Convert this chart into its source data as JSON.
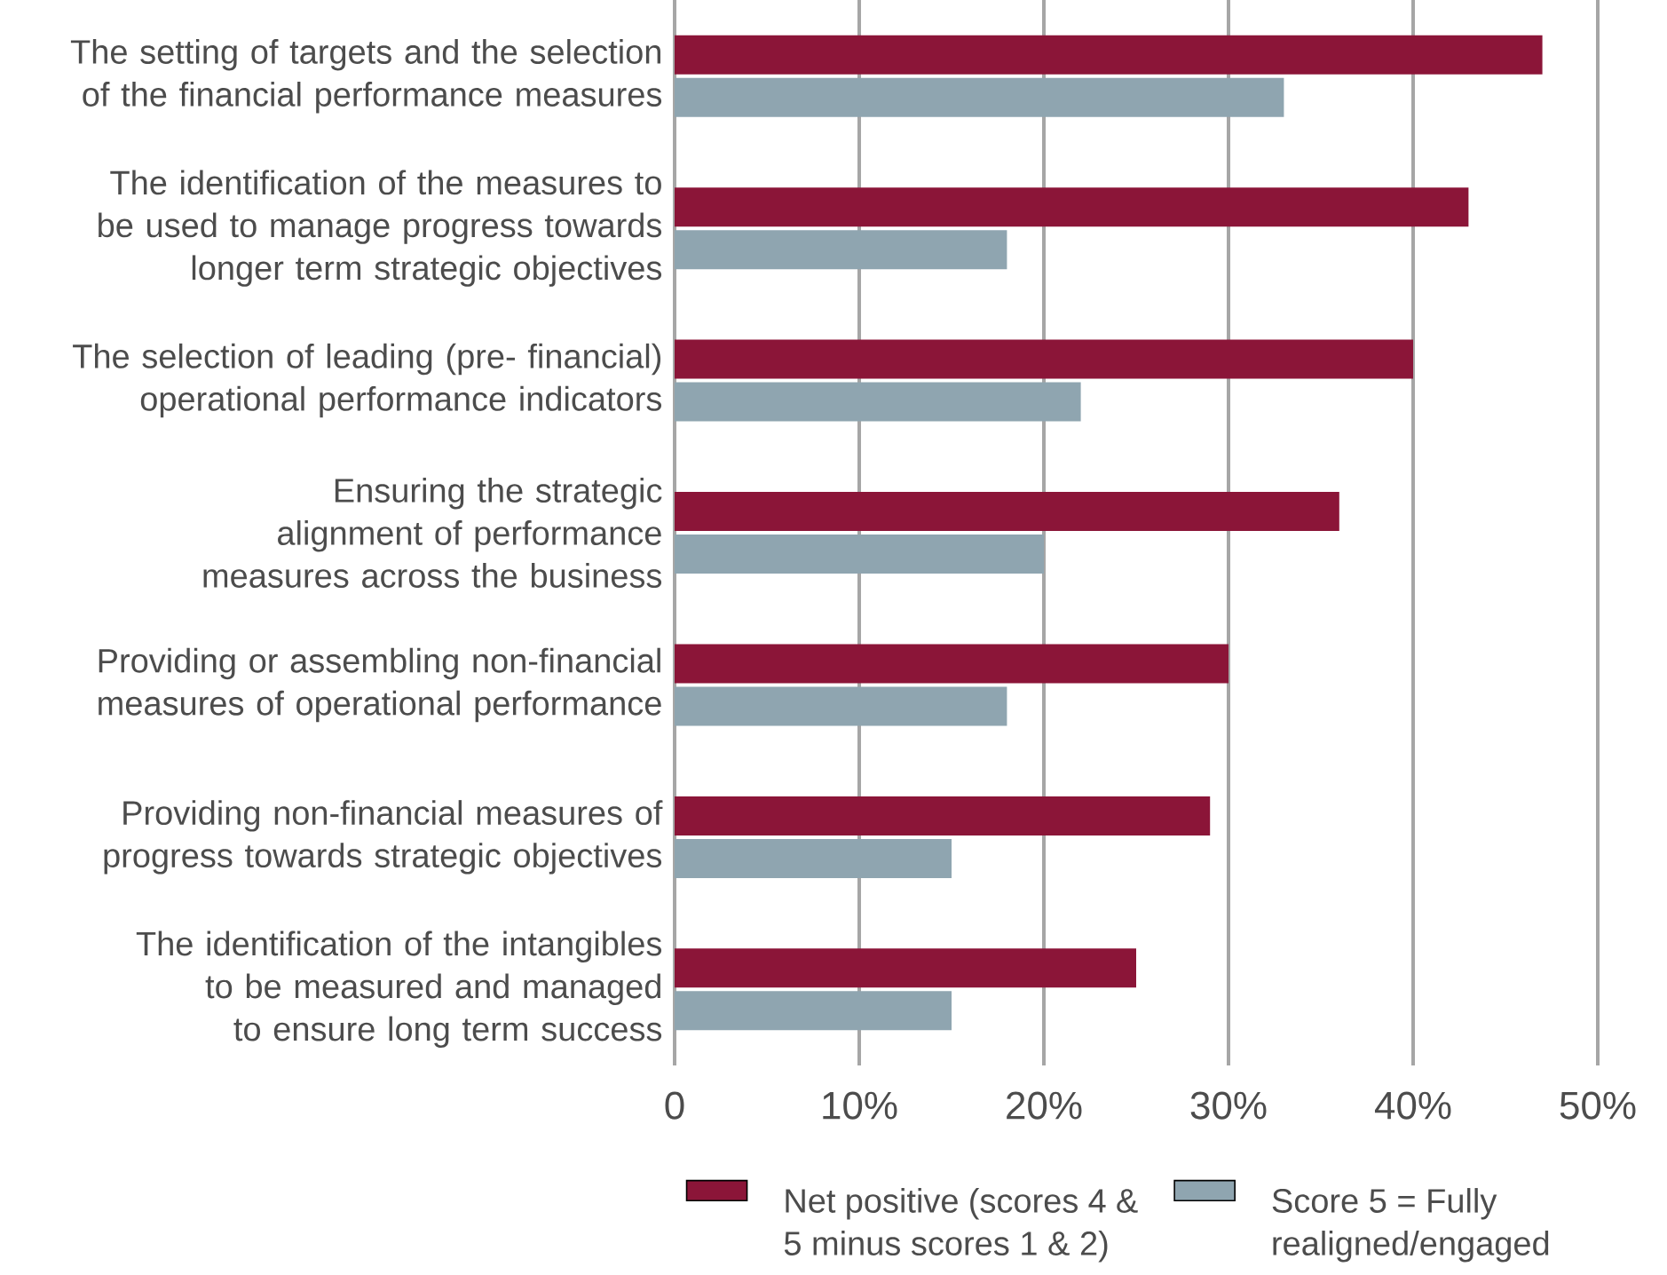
{
  "chart_data": {
    "type": "bar",
    "orientation": "horizontal",
    "categories": [
      "The setting of targets and the selection of the financial performance measures",
      "The identification of the measures to be used to manage progress towards longer term strategic objectives",
      "The selection of leading (pre- financial) operational performance indicators",
      "Ensuring the strategic alignment of performance measures across the business",
      "Providing or assembling non-financial measures of operational performance",
      "Providing non-financial measures of progress towards strategic objectives",
      "The identification of the intangibles to be measured and managed to ensure long term success"
    ],
    "series": [
      {
        "name": "Net positive (scores 4 & 5 minus scores 1 & 2)",
        "color": "#8b1538",
        "values": [
          47,
          43,
          40,
          36,
          30,
          29,
          25
        ]
      },
      {
        "name": "Score 5 = Fully realigned/engaged",
        "color": "#8fa5b0",
        "values": [
          33,
          18,
          22,
          20,
          18,
          15,
          15
        ]
      }
    ],
    "xlim": [
      0,
      50
    ],
    "xticks": [
      0,
      {
        "value": 10,
        "label": "10%"
      },
      {
        "value": 20,
        "label": "20%"
      },
      {
        "value": 30,
        "label": "30%"
      },
      {
        "value": 40,
        "label": "40%"
      },
      {
        "value": 50,
        "label": "50%"
      }
    ],
    "grid": "x",
    "legend": "bottom"
  }
}
